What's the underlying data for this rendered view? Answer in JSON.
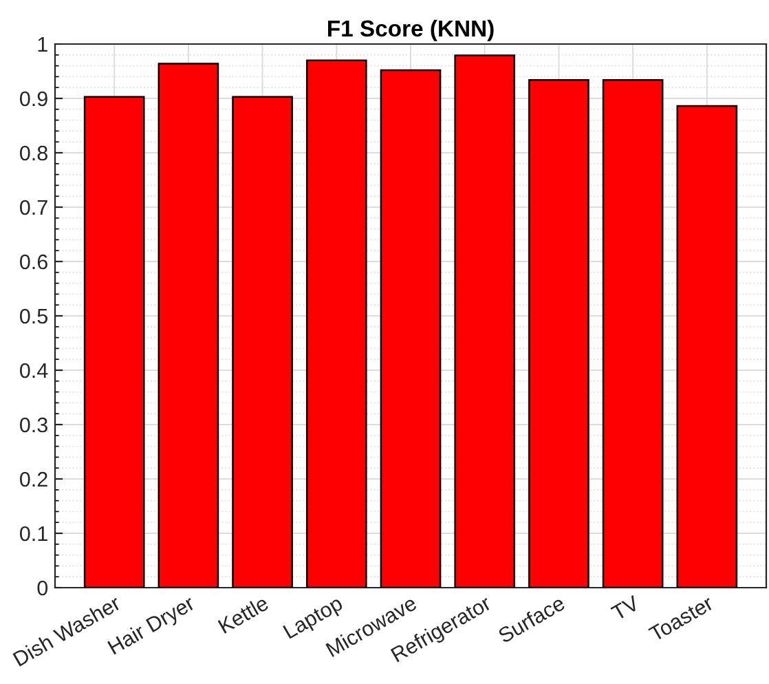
{
  "chart_data": {
    "type": "bar",
    "title": "F1 Score (KNN)",
    "categories": [
      "Dish Washer",
      "Hair Dryer",
      "Kettle",
      "Laptop",
      "Microwave",
      "Refrigerator",
      "Surface",
      "TV",
      "Toaster"
    ],
    "values": [
      0.903,
      0.964,
      0.903,
      0.97,
      0.952,
      0.979,
      0.934,
      0.934,
      0.886
    ],
    "color": "#ff0000",
    "ylim": [
      0,
      1
    ],
    "yticks": [
      0,
      0.1,
      0.2,
      0.3,
      0.4,
      0.5,
      0.6,
      0.7,
      0.8,
      0.9,
      1
    ],
    "grid": true
  }
}
